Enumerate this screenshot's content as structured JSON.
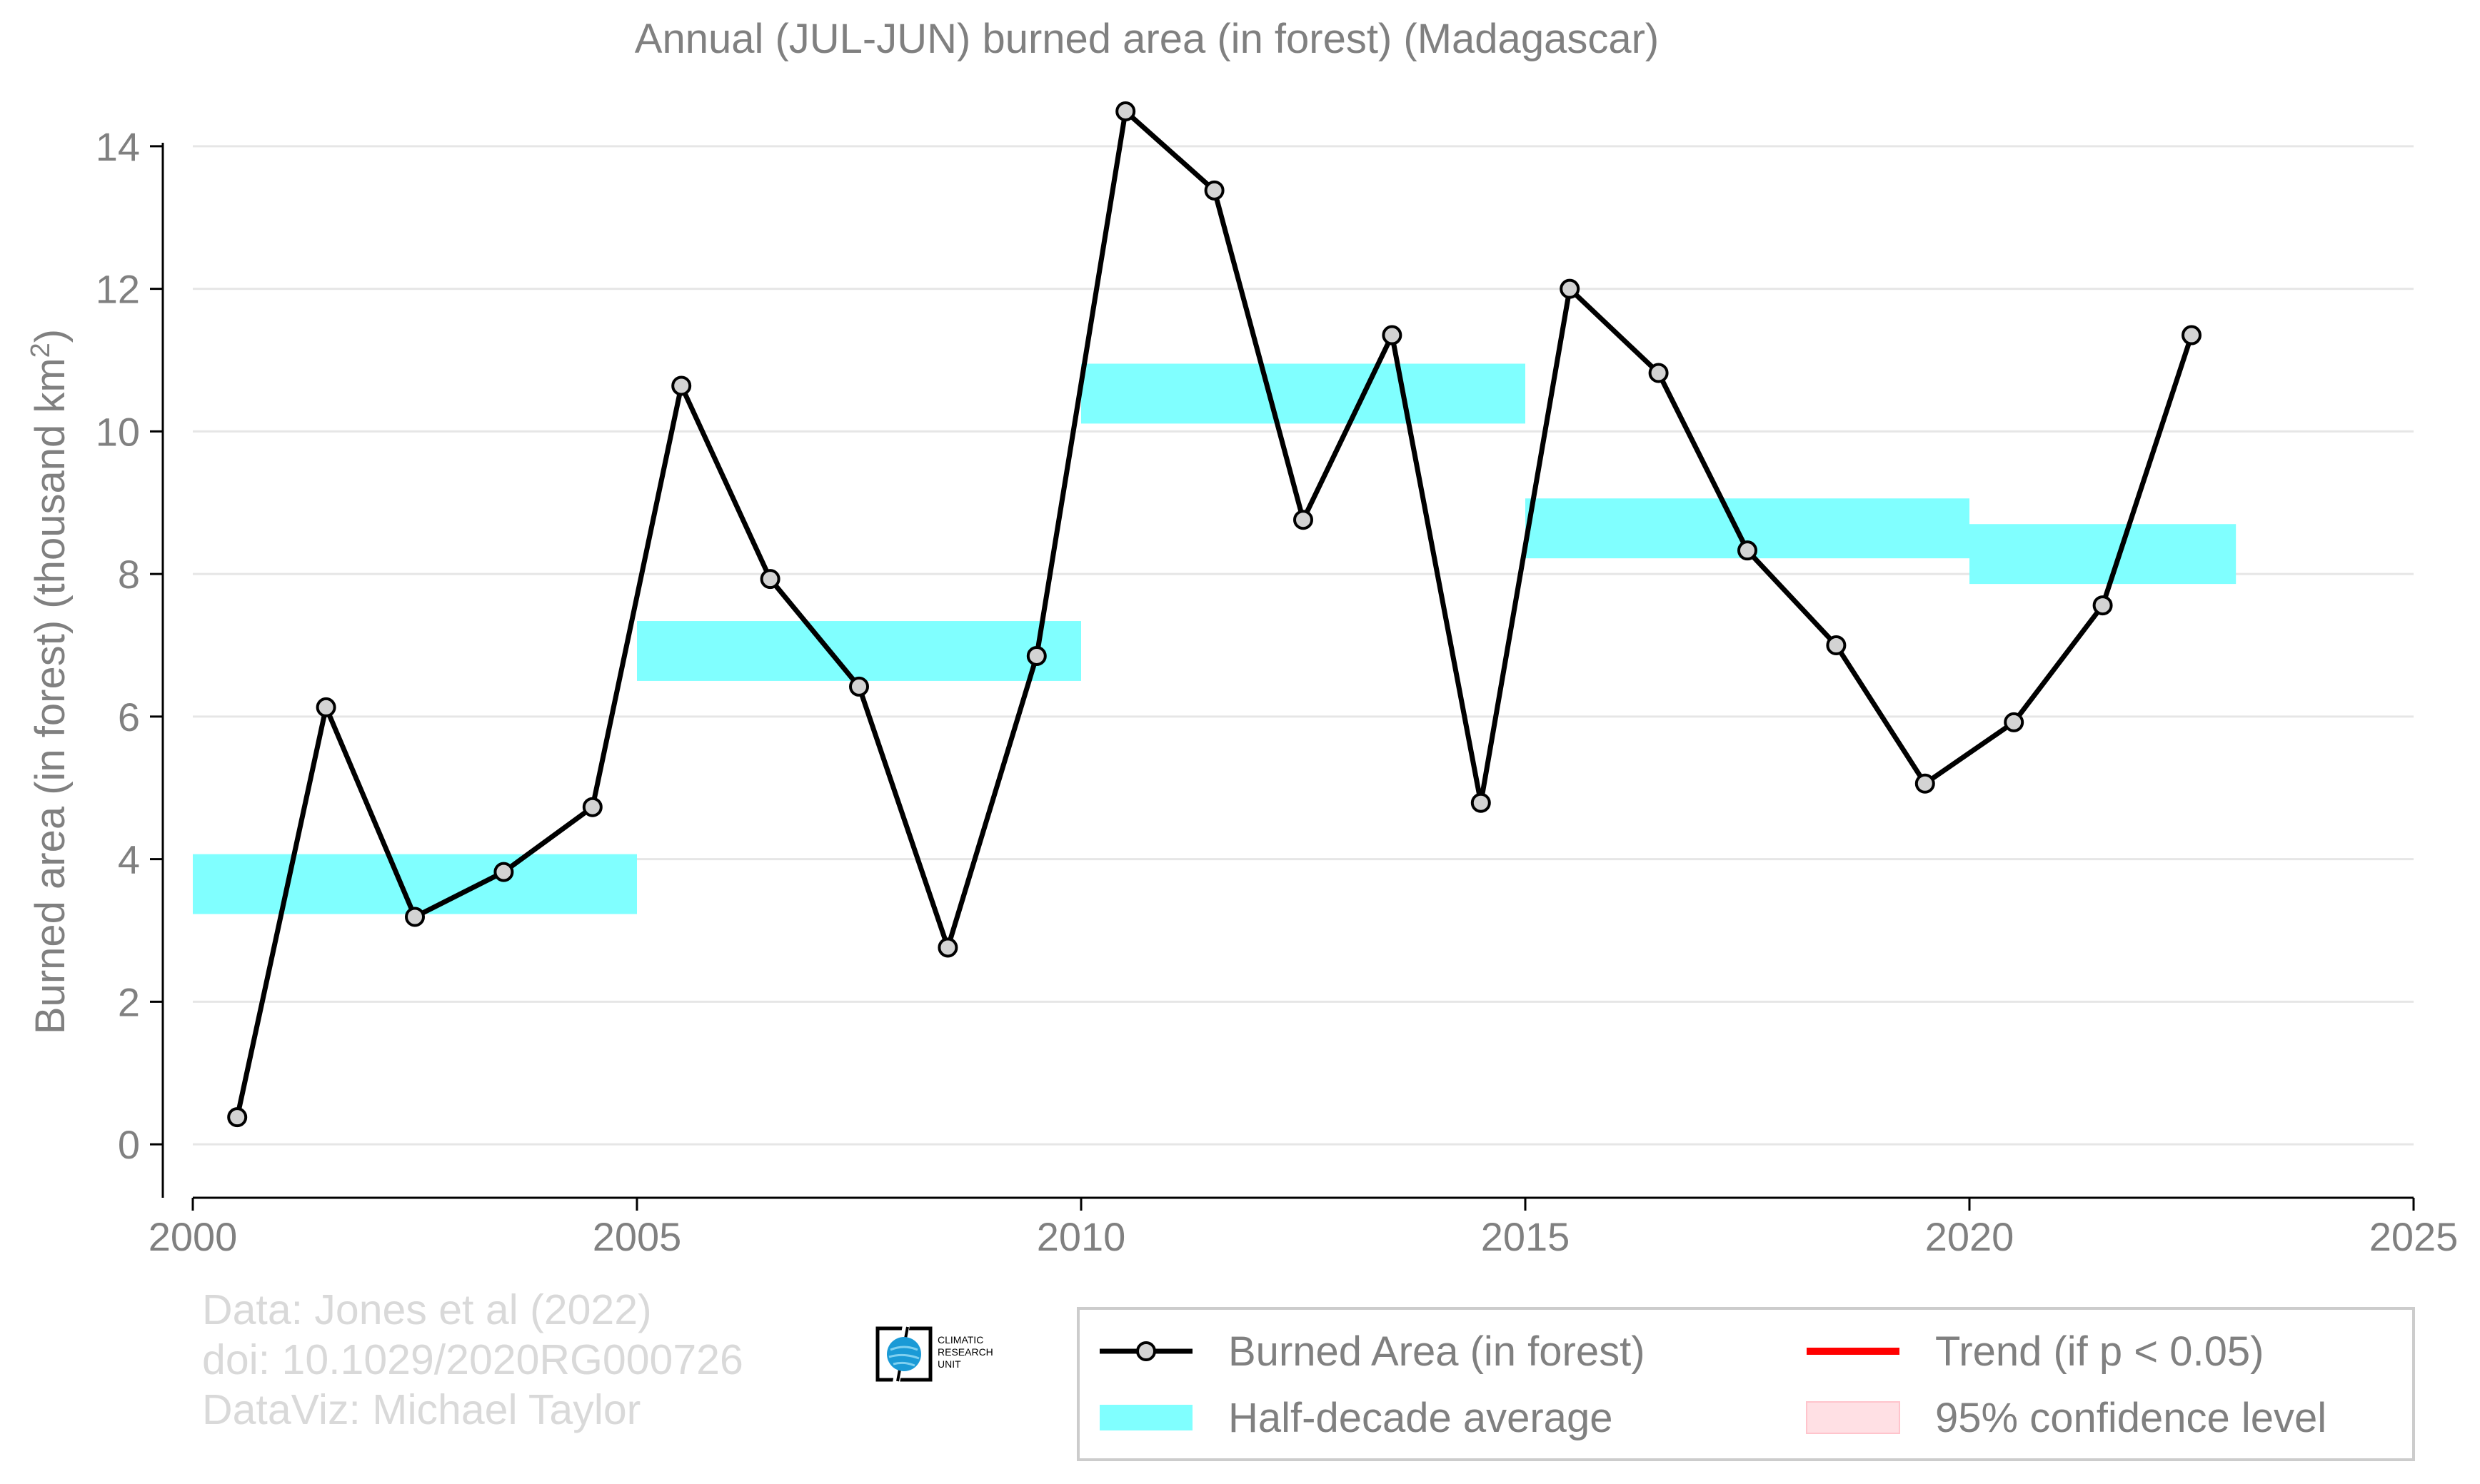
{
  "chart_data": {
    "type": "line",
    "title": "Annual (JUL-JUN) burned area (in forest) (Madagascar)",
    "ylabel": "Burned area (in forest) (thousand km",
    "ylabel_sup": "2",
    "ylabel_close": ")",
    "xlabel": "",
    "xlim": [
      2000,
      2025
    ],
    "ylim": [
      -0.75,
      14.75
    ],
    "x_ticks": [
      2000,
      2005,
      2010,
      2015,
      2020,
      2025
    ],
    "x_tick_labels": [
      "2000",
      "2005",
      "2010",
      "2015",
      "2020",
      "2025"
    ],
    "y_ticks": [
      0,
      2,
      4,
      6,
      8,
      10,
      12,
      14
    ],
    "y_tick_labels": [
      "0",
      "2",
      "4",
      "6",
      "8",
      "10",
      "12",
      "14"
    ],
    "grid": "horizontal",
    "series": [
      {
        "name": "Burned Area (in forest)",
        "color": "#000000",
        "marker_fill": "#d3d3d3",
        "x": [
          2000.5,
          2001.5,
          2002.5,
          2003.5,
          2004.5,
          2005.5,
          2006.5,
          2007.5,
          2008.5,
          2009.5,
          2010.5,
          2011.5,
          2012.5,
          2013.5,
          2014.5,
          2015.5,
          2016.5,
          2017.5,
          2018.5,
          2019.5,
          2020.5,
          2021.5,
          2022.5
        ],
        "y": [
          0.38,
          6.13,
          3.19,
          3.82,
          4.73,
          10.64,
          7.93,
          6.42,
          2.76,
          6.85,
          14.49,
          13.38,
          8.76,
          11.35,
          4.79,
          12.0,
          10.82,
          8.33,
          7.0,
          5.06,
          5.92,
          7.56,
          11.35
        ]
      },
      {
        "name": "Half-decade average",
        "type": "step-band",
        "color": "#80ffff",
        "segments": [
          {
            "x0": 2000,
            "x1": 2005,
            "y": 3.65
          },
          {
            "x0": 2005,
            "x1": 2010,
            "y": 6.92
          },
          {
            "x0": 2010,
            "x1": 2015,
            "y": 10.53
          },
          {
            "x0": 2015,
            "x1": 2020,
            "y": 8.64
          },
          {
            "x0": 2020,
            "x1": 2023,
            "y": 8.28
          }
        ]
      }
    ],
    "legend": {
      "placement": "bottom-right",
      "entries": [
        {
          "label": "Burned Area (in forest)",
          "kind": "line-marker",
          "color": "#000000"
        },
        {
          "label": "Trend (if p < 0.05)",
          "kind": "line",
          "color": "#ff0000"
        },
        {
          "label": "Half-decade average",
          "kind": "band",
          "color": "#80ffff"
        },
        {
          "label": "95% confidence level",
          "kind": "patch",
          "color": "#ffe0e4"
        }
      ]
    }
  },
  "credits": {
    "line1": "Data: Jones et al (2022)",
    "line2": "doi: 10.1029/2020RG000726",
    "line3": "DataViz: Michael Taylor"
  },
  "logo": {
    "line1": "CLIMATIC",
    "line2": "RESEARCH",
    "line3": "UNIT"
  }
}
